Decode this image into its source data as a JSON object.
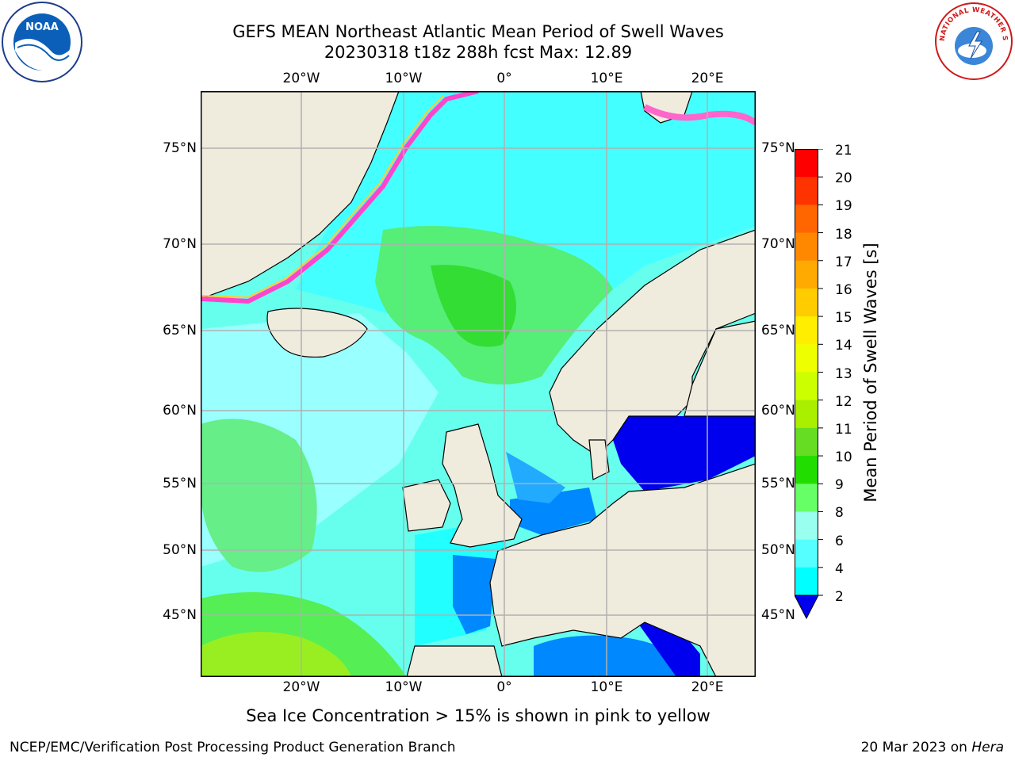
{
  "title": {
    "line1": "GEFS MEAN Northeast Atlantic Mean Period of Swell Waves",
    "line2": "20230318 t18z 288h fcst   Max: 12.89"
  },
  "map": {
    "lon_labels": [
      "20°W",
      "10°W",
      "0°",
      "10°E",
      "20°E"
    ],
    "lat_labels": [
      "75°N",
      "70°N",
      "65°N",
      "60°N",
      "55°N",
      "50°N",
      "45°N"
    ]
  },
  "colorbar": {
    "label": "Mean Period of Swell Waves [s]",
    "ticks": [
      "21",
      "20",
      "19",
      "18",
      "17",
      "16",
      "15",
      "14",
      "13",
      "12",
      "11",
      "10",
      "9",
      "8",
      "6",
      "4",
      "2"
    ],
    "colors": [
      "#ff0000",
      "#ff3300",
      "#ff6600",
      "#ff8800",
      "#ffaa00",
      "#ffcc00",
      "#ffee00",
      "#eeff00",
      "#ccff00",
      "#aaee00",
      "#66dd22",
      "#22dd00",
      "#66ff66",
      "#99ffee",
      "#55ffff",
      "#00ffff",
      "#0088ff",
      "#0000ee"
    ]
  },
  "note": "Sea Ice Concentration > 15% is shown in pink to yellow",
  "footer": {
    "left": "NCEP/EMC/Verification Post Processing Product Generation Branch",
    "right_prefix": "20 Mar 2023 on",
    "right_host": "Hera"
  },
  "logos": {
    "left": "NOAA",
    "right_text": "NATIONAL WEATHER SERVICE"
  },
  "colors": {
    "land": "#efecdd",
    "ice_free_white": "#ffffff",
    "grid": "#b0b0b0"
  }
}
